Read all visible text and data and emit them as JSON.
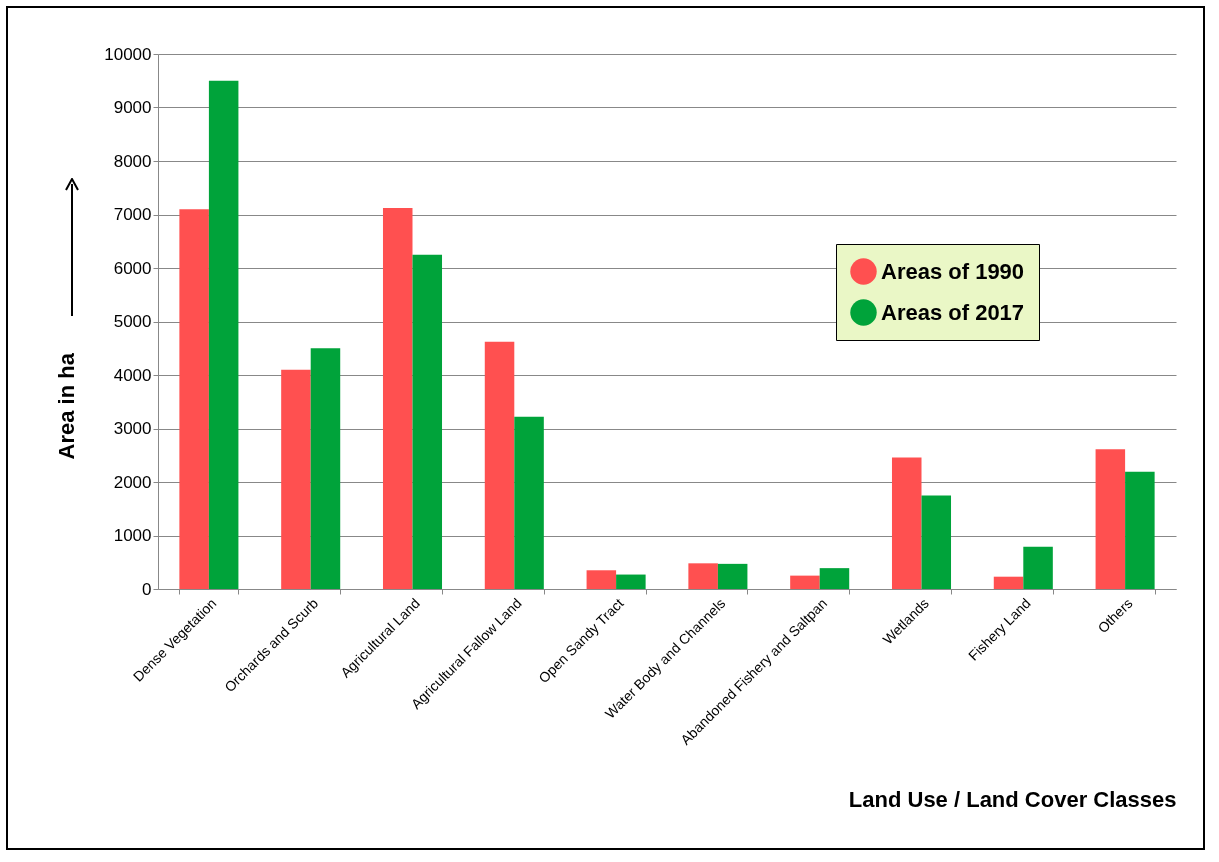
{
  "chart_data": {
    "type": "bar",
    "xlabel": "Land Use / Land Cover Classes",
    "ylabel": "Area in ha",
    "categories": [
      "Dense Vegetation",
      "Orchards and Scurb",
      "Agricultural Land",
      "Agricultural Fallow Land",
      "Open Sandy Tract",
      "Water Body and Channels",
      "Abandoned Fishery and Saltpan",
      "Wetlands",
      "Fishery Land",
      "Others"
    ],
    "series": [
      {
        "name": "Areas of 1990",
        "color": "#ff5050",
        "values": [
          7100,
          4100,
          7120,
          4620,
          350,
          480,
          250,
          2460,
          230,
          2610
        ]
      },
      {
        "name": "Areas of 2017",
        "color": "#00a33a",
        "values": [
          9500,
          4500,
          6250,
          3220,
          270,
          470,
          390,
          1750,
          790,
          2190
        ]
      }
    ],
    "ylim": [
      0,
      10000
    ],
    "yticks": [
      0,
      1000,
      2000,
      3000,
      4000,
      5000,
      6000,
      7000,
      8000,
      9000,
      10000
    ],
    "grid": "y",
    "legend": "right"
  }
}
